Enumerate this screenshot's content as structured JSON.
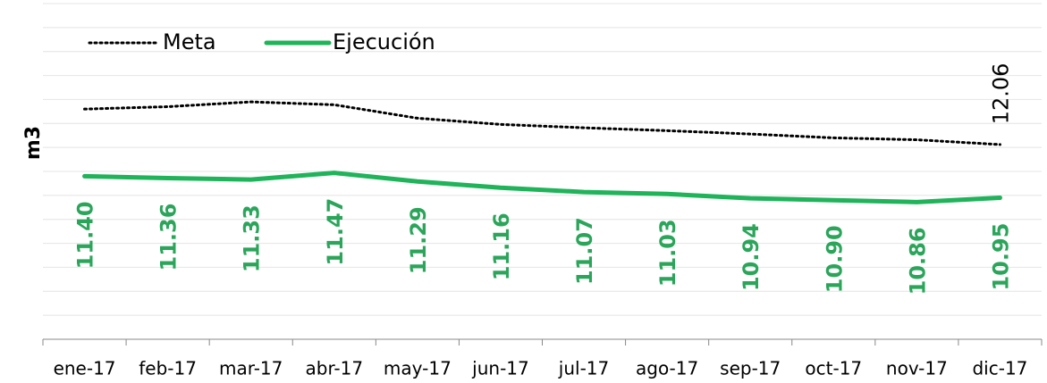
{
  "chart_data": {
    "type": "line",
    "y_label": "m3",
    "categories": [
      "ene-17",
      "feb-17",
      "mar-17",
      "abr-17",
      "may-17",
      "jun-17",
      "jul-17",
      "ago-17",
      "sep-17",
      "oct-17",
      "nov-17",
      "dic-17"
    ],
    "series": [
      {
        "name": "Meta",
        "color": "#000000",
        "style": "dotted",
        "values": [
          12.8,
          12.85,
          12.95,
          12.89,
          12.61,
          12.48,
          12.41,
          12.35,
          12.28,
          12.2,
          12.16,
          12.06
        ],
        "value_labels": [
          null,
          null,
          null,
          null,
          null,
          null,
          null,
          null,
          null,
          null,
          null,
          "12.06"
        ],
        "label_color": "#000000"
      },
      {
        "name": "Ejecución",
        "color": "#1fb35a",
        "style": "solid",
        "values": [
          11.4,
          11.36,
          11.33,
          11.47,
          11.29,
          11.16,
          11.07,
          11.03,
          10.94,
          10.9,
          10.86,
          10.95
        ],
        "value_labels": [
          "11.40",
          "11.36",
          "11.33",
          "11.47",
          "11.29",
          "11.16",
          "11.07",
          "11.03",
          "10.94",
          "10.90",
          "10.86",
          "10.95"
        ],
        "label_color": "#2aa55a"
      }
    ],
    "ylim": [
      8,
      15
    ],
    "yticks": [
      8,
      8.5,
      9,
      9.5,
      10,
      10.5,
      11,
      11.5,
      12,
      12.5,
      13,
      13.5,
      14,
      14.5,
      15
    ],
    "grid": true,
    "legend": "top-left"
  }
}
